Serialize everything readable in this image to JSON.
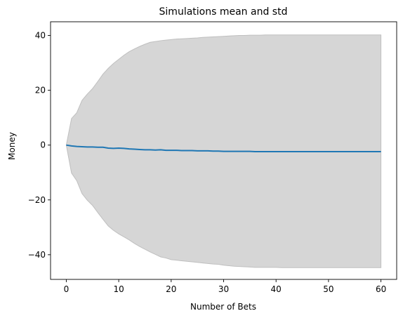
{
  "chart_data": {
    "type": "area",
    "title": "Simulations mean and std",
    "xlabel": "Number of Bets",
    "ylabel": "Money",
    "xlim": [
      -3,
      63
    ],
    "ylim": [
      -49,
      45
    ],
    "xticks": [
      0,
      10,
      20,
      30,
      40,
      50,
      60
    ],
    "yticks": [
      -40,
      -20,
      0,
      20,
      40
    ],
    "grid": false,
    "colors": {
      "line": "#1f77b4",
      "band": "#d6d6d6",
      "band_edge": "#bfbfbf"
    },
    "x": [
      0,
      1,
      2,
      3,
      4,
      5,
      6,
      7,
      8,
      9,
      10,
      11,
      12,
      13,
      14,
      15,
      16,
      17,
      18,
      19,
      20,
      21,
      22,
      23,
      24,
      25,
      26,
      27,
      28,
      29,
      30,
      31,
      32,
      33,
      34,
      35,
      36,
      37,
      38,
      39,
      40,
      41,
      42,
      43,
      44,
      45,
      46,
      47,
      48,
      49,
      50,
      51,
      52,
      53,
      54,
      55,
      56,
      57,
      58,
      59,
      60
    ],
    "series": [
      {
        "role": "mean",
        "values": [
          0,
          -0.3,
          -0.5,
          -0.6,
          -0.7,
          -0.7,
          -0.8,
          -0.8,
          -1.1,
          -1.2,
          -1.1,
          -1.2,
          -1.4,
          -1.5,
          -1.6,
          -1.7,
          -1.7,
          -1.8,
          -1.7,
          -1.9,
          -1.9,
          -1.9,
          -2.0,
          -2.0,
          -2.0,
          -2.1,
          -2.1,
          -2.1,
          -2.2,
          -2.2,
          -2.3,
          -2.3,
          -2.3,
          -2.3,
          -2.3,
          -2.3,
          -2.4,
          -2.4,
          -2.4,
          -2.4,
          -2.4,
          -2.4,
          -2.4,
          -2.4,
          -2.4,
          -2.4,
          -2.4,
          -2.4,
          -2.4,
          -2.4,
          -2.4,
          -2.4,
          -2.4,
          -2.4,
          -2.4,
          -2.4,
          -2.4,
          -2.4,
          -2.4,
          -2.4,
          -2.4
        ]
      },
      {
        "role": "upper",
        "values": [
          0,
          9.7,
          11.8,
          16.3,
          18.6,
          20.6,
          23.2,
          25.9,
          28.0,
          29.8,
          31.3,
          32.8,
          34.1,
          35.1,
          36.0,
          36.8,
          37.5,
          37.8,
          38.1,
          38.3,
          38.5,
          38.7,
          38.8,
          38.9,
          39.0,
          39.1,
          39.3,
          39.4,
          39.5,
          39.6,
          39.7,
          39.8,
          39.9,
          40.0,
          40.0,
          40.1,
          40.1,
          40.1,
          40.2,
          40.2,
          40.2,
          40.2,
          40.2,
          40.2,
          40.2,
          40.2,
          40.2,
          40.2,
          40.2,
          40.2,
          40.2,
          40.2,
          40.2,
          40.2,
          40.2,
          40.2,
          40.2,
          40.2,
          40.2,
          40.2,
          40.2
        ]
      },
      {
        "role": "lower",
        "values": [
          0,
          -10.2,
          -13.0,
          -17.7,
          -20.1,
          -22.0,
          -24.6,
          -27.1,
          -29.5,
          -31.1,
          -32.4,
          -33.5,
          -34.6,
          -35.9,
          -37.0,
          -38.0,
          -39.0,
          -39.9,
          -40.8,
          -41.2,
          -41.8,
          -42.0,
          -42.2,
          -42.4,
          -42.6,
          -42.8,
          -43.0,
          -43.2,
          -43.4,
          -43.5,
          -43.8,
          -44.0,
          -44.2,
          -44.3,
          -44.4,
          -44.5,
          -44.6,
          -44.6,
          -44.6,
          -44.6,
          -44.6,
          -44.7,
          -44.7,
          -44.7,
          -44.7,
          -44.7,
          -44.7,
          -44.7,
          -44.7,
          -44.7,
          -44.7,
          -44.7,
          -44.7,
          -44.7,
          -44.7,
          -44.7,
          -44.7,
          -44.7,
          -44.7,
          -44.7,
          -44.7
        ]
      }
    ]
  }
}
